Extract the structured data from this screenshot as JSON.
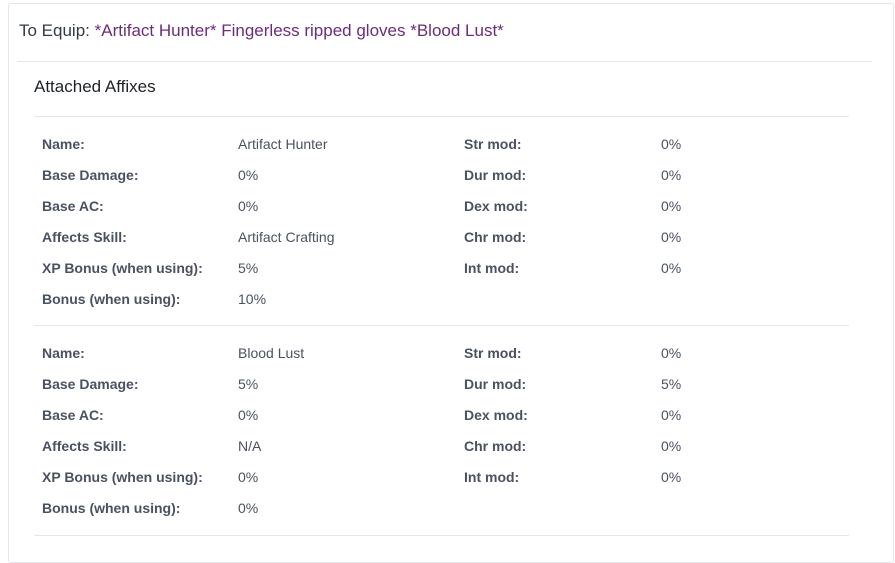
{
  "header": {
    "prefix": "To Equip:",
    "item_name": "*Artifact Hunter* Fingerless ripped gloves *Blood Lust*"
  },
  "section": {
    "title": "Attached Affixes"
  },
  "affixes": [
    {
      "left": [
        {
          "label": "Name:",
          "value": "Artifact Hunter"
        },
        {
          "label": "Base Damage:",
          "value": "0%"
        },
        {
          "label": "Base AC:",
          "value": "0%"
        },
        {
          "label": "Affects Skill:",
          "value": "Artifact Crafting"
        },
        {
          "label": "XP Bonus (when using):",
          "value": "5%"
        },
        {
          "label": "Bonus (when using):",
          "value": "10%"
        }
      ],
      "right": [
        {
          "label": "Str mod:",
          "value": "0%"
        },
        {
          "label": "Dur mod:",
          "value": "0%"
        },
        {
          "label": "Dex mod:",
          "value": "0%"
        },
        {
          "label": "Chr mod:",
          "value": "0%"
        },
        {
          "label": "Int mod:",
          "value": "0%"
        }
      ]
    },
    {
      "left": [
        {
          "label": "Name:",
          "value": "Blood Lust"
        },
        {
          "label": "Base Damage:",
          "value": "5%"
        },
        {
          "label": "Base AC:",
          "value": "0%"
        },
        {
          "label": "Affects Skill:",
          "value": "N/A"
        },
        {
          "label": "XP Bonus (when using):",
          "value": "0%"
        },
        {
          "label": "Bonus (when using):",
          "value": "0%"
        }
      ],
      "right": [
        {
          "label": "Str mod:",
          "value": "0%"
        },
        {
          "label": "Dur mod:",
          "value": "5%"
        },
        {
          "label": "Dex mod:",
          "value": "0%"
        },
        {
          "label": "Chr mod:",
          "value": "0%"
        },
        {
          "label": "Int mod:",
          "value": "0%"
        }
      ]
    }
  ]
}
